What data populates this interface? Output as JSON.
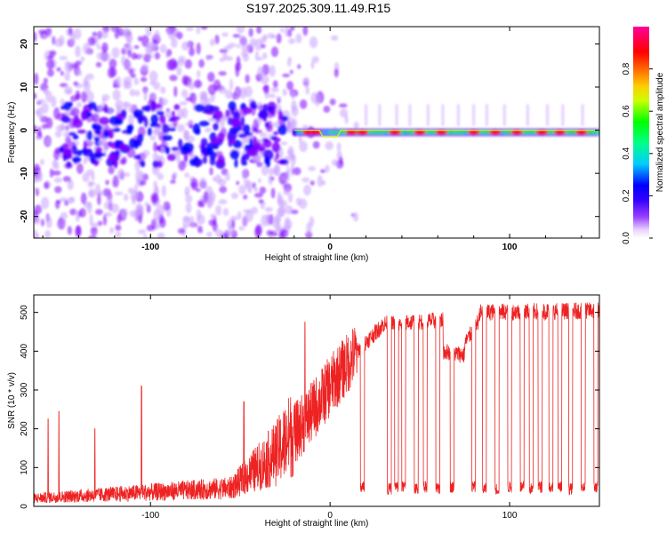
{
  "figure": {
    "title": "S197.2025.309.11.49.R15"
  },
  "chart_data": [
    {
      "type": "heatmap",
      "name": "spectrogram",
      "xlabel": "Height of straight line (km)",
      "ylabel": "Frequency (Hz)",
      "xlim": [
        -165,
        150
      ],
      "ylim": [
        -25,
        24
      ],
      "xticks": [
        -100,
        0,
        100
      ],
      "yticks": [
        -20,
        -10,
        0,
        10,
        20
      ],
      "tick_labels_x": [
        "-100",
        "0",
        "100"
      ],
      "tick_labels_y": [
        "-20",
        "-10",
        "0",
        "10",
        "20"
      ],
      "colorbar": {
        "label": "Normalized spectral amplitude",
        "range": [
          0,
          1
        ],
        "ticks": [
          0.0,
          0.2,
          0.4,
          0.6,
          0.8
        ],
        "tick_labels": [
          "0.0",
          "0.2",
          "0.4",
          "0.6",
          "0.8"
        ],
        "colormap": [
          "#ffffff",
          "#c9a0ff",
          "#7f00ff",
          "#3300ff",
          "#0000ff",
          "#00ccff",
          "#00ff88",
          "#00ff00",
          "#ccff00",
          "#ffcc00",
          "#ff6600",
          "#ff0000",
          "#ff0099"
        ]
      },
      "description_note": "Strong energy band near 0 Hz for heights above -20 km with maxima near 0.9; diffuse scattered energy at lower heights."
    },
    {
      "type": "line",
      "name": "snr",
      "xlabel": "Height of straight line (km)",
      "ylabel": "SNR (10 * v/v)",
      "xlim": [
        -165,
        150
      ],
      "ylim": [
        0,
        545
      ],
      "xticks": [
        -100,
        0,
        100
      ],
      "yticks": [
        0,
        100,
        200,
        300,
        400,
        500
      ],
      "tick_labels_x": [
        "-100",
        "0",
        "100"
      ],
      "tick_labels_y": [
        "0",
        "100",
        "200",
        "300",
        "400",
        "500"
      ],
      "color": "#ee2222",
      "spikes": [
        {
          "x": -157,
          "y": 225
        },
        {
          "x": -151,
          "y": 245
        },
        {
          "x": -131,
          "y": 200
        },
        {
          "x": -105,
          "y": 310
        },
        {
          "x": -48,
          "y": 270
        },
        {
          "x": -14,
          "y": 475
        }
      ],
      "segments": [
        {
          "x": [
            -165,
            -55
          ],
          "base": [
            20,
            45
          ]
        },
        {
          "x": [
            -55,
            -30
          ],
          "base": [
            45,
            130
          ]
        },
        {
          "x": [
            -30,
            -12
          ],
          "base": [
            130,
            230
          ]
        },
        {
          "x": [
            -12,
            0
          ],
          "base": [
            230,
            310
          ]
        },
        {
          "x": [
            0,
            15
          ],
          "base": [
            310,
            400
          ]
        },
        {
          "x": [
            15,
            30
          ],
          "base": [
            400,
            470
          ]
        },
        {
          "x": [
            30,
            63
          ],
          "base": [
            470,
            480
          ]
        },
        {
          "x": [
            63,
            75
          ],
          "base": [
            400,
            390
          ]
        },
        {
          "x": [
            75,
            83
          ],
          "base": [
            420,
            480
          ]
        },
        {
          "x": [
            83,
            150
          ],
          "base": [
            500,
            505
          ]
        }
      ],
      "dropouts": [
        {
          "x": 18,
          "y": 35
        },
        {
          "x": 33,
          "y": 30
        },
        {
          "x": 37,
          "y": 35
        },
        {
          "x": 41,
          "y": 35
        },
        {
          "x": 48,
          "y": 30
        },
        {
          "x": 53,
          "y": 35
        },
        {
          "x": 60,
          "y": 30
        },
        {
          "x": 68,
          "y": 35
        },
        {
          "x": 80,
          "y": 35
        },
        {
          "x": 86,
          "y": 30
        },
        {
          "x": 93,
          "y": 30
        },
        {
          "x": 100,
          "y": 35
        },
        {
          "x": 107,
          "y": 35
        },
        {
          "x": 112,
          "y": 30
        },
        {
          "x": 117,
          "y": 35
        },
        {
          "x": 123,
          "y": 35
        },
        {
          "x": 128,
          "y": 35
        },
        {
          "x": 134,
          "y": 30
        },
        {
          "x": 141,
          "y": 35
        },
        {
          "x": 148,
          "y": 35
        }
      ]
    }
  ]
}
